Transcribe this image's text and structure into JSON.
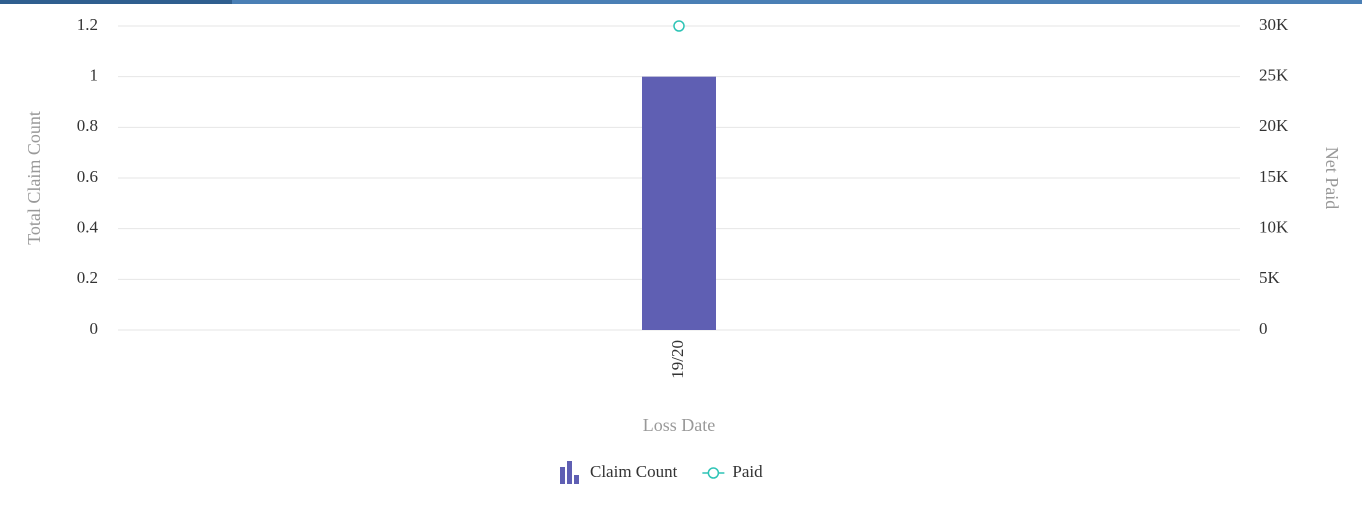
{
  "chart_data": {
    "type": "bar",
    "x_label": "Loss Date",
    "y_label": "Total Claim Count",
    "y2_label": "Net Paid",
    "categories": [
      "19/20"
    ],
    "series": [
      {
        "name": "Claim Count",
        "type": "bar",
        "color": "#5f5fb3",
        "values": [
          1
        ]
      },
      {
        "name": "Paid",
        "type": "line",
        "axis": "y2",
        "color": "#2ec4b6",
        "values": [
          30000
        ]
      }
    ],
    "ylim": [
      0,
      1.2
    ],
    "yticks": [
      0,
      0.2,
      0.4,
      0.6,
      0.8,
      1,
      1.2
    ],
    "y2lim": [
      0,
      30000
    ],
    "y2ticks": [
      0,
      {
        "value": 5000,
        "label": "5K"
      },
      {
        "value": 10000,
        "label": "10K"
      },
      {
        "value": 15000,
        "label": "15K"
      },
      {
        "value": 20000,
        "label": "20K"
      },
      {
        "value": 25000,
        "label": "25K"
      },
      {
        "value": 30000,
        "label": "30K"
      }
    ],
    "grid": true,
    "legend": "bottom"
  }
}
